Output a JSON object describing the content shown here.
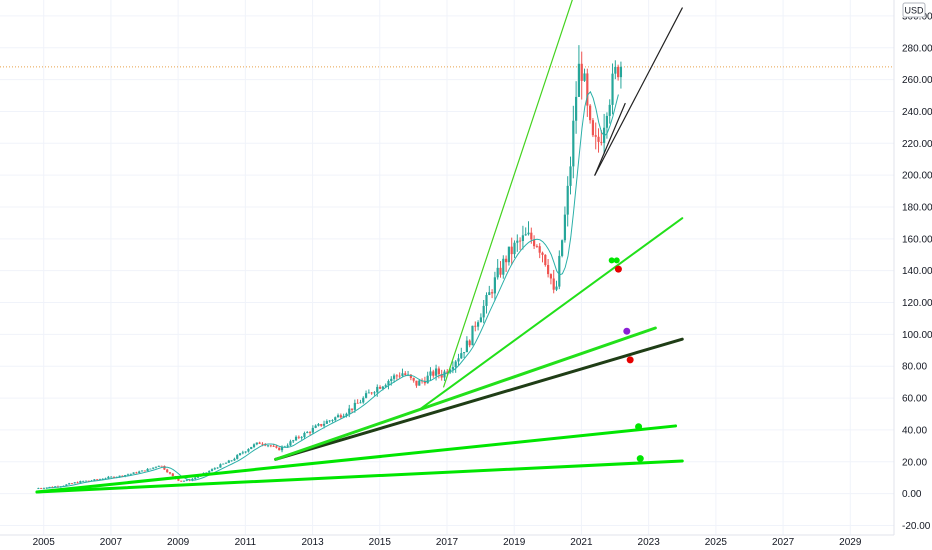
{
  "chart_data": {
    "type": "candlestick",
    "currency": "USD",
    "x_ticks": [
      "2005",
      "2007",
      "2009",
      "2011",
      "2013",
      "2015",
      "2017",
      "2019",
      "2021",
      "2023",
      "2025",
      "2027",
      "2029"
    ],
    "y_ticks": [
      "300.00",
      "280.00",
      "260.00",
      "240.00",
      "220.00",
      "200.00",
      "180.00",
      "160.00",
      "140.00",
      "120.00",
      "100.00",
      "80.00",
      "60.00",
      "40.00",
      "20.00",
      "0.00",
      "-20.00"
    ],
    "y_tick_values": [
      300,
      280,
      260,
      240,
      220,
      200,
      180,
      160,
      140,
      120,
      100,
      80,
      60,
      40,
      20,
      0,
      -20
    ],
    "ylim": [
      -26,
      310
    ],
    "xlim": [
      2003.7,
      2030.3
    ],
    "price_line": 268,
    "price_path": [
      [
        2004.8,
        3.2
      ],
      [
        2005.0,
        3.6
      ],
      [
        2005.3,
        4.2
      ],
      [
        2005.6,
        5.0
      ],
      [
        2005.9,
        6.5
      ],
      [
        2006.2,
        7.8
      ],
      [
        2006.5,
        8.3
      ],
      [
        2006.8,
        9.5
      ],
      [
        2007.0,
        10.2
      ],
      [
        2007.3,
        11.0
      ],
      [
        2007.6,
        12.3
      ],
      [
        2007.9,
        13.8
      ],
      [
        2008.2,
        15.5
      ],
      [
        2008.5,
        18.2
      ],
      [
        2008.7,
        14.2
      ],
      [
        2008.9,
        10.5
      ],
      [
        2009.1,
        7.8
      ],
      [
        2009.4,
        8.6
      ],
      [
        2009.7,
        11.5
      ],
      [
        2010.0,
        14.5
      ],
      [
        2010.3,
        17.8
      ],
      [
        2010.6,
        20.5
      ],
      [
        2010.9,
        25.0
      ],
      [
        2011.2,
        29.5
      ],
      [
        2011.5,
        32.2
      ],
      [
        2011.8,
        30.0
      ],
      [
        2012.0,
        27.5
      ],
      [
        2012.3,
        31.0
      ],
      [
        2012.6,
        35.2
      ],
      [
        2012.9,
        38.5
      ],
      [
        2013.1,
        41.2
      ],
      [
        2013.4,
        44.5
      ],
      [
        2013.7,
        47.5
      ],
      [
        2014.0,
        51.0
      ],
      [
        2014.3,
        55.0
      ],
      [
        2014.6,
        60.5
      ],
      [
        2014.9,
        66.0
      ],
      [
        2015.1,
        68.5
      ],
      [
        2015.4,
        72.5
      ],
      [
        2015.7,
        76.0
      ],
      [
        2015.9,
        73.0
      ],
      [
        2016.1,
        68.5
      ],
      [
        2016.4,
        72.0
      ],
      [
        2016.7,
        76.5
      ],
      [
        2016.9,
        74.5
      ],
      [
        2017.1,
        79.5
      ],
      [
        2017.4,
        87.0
      ],
      [
        2017.7,
        95.5
      ],
      [
        2017.9,
        108.0
      ],
      [
        2018.2,
        120.0
      ],
      [
        2018.5,
        135.0
      ],
      [
        2018.8,
        148.0
      ],
      [
        2019.1,
        156.0
      ],
      [
        2019.4,
        161.0
      ],
      [
        2019.7,
        159.0
      ],
      [
        2019.9,
        151.0
      ],
      [
        2020.1,
        139.0
      ],
      [
        2020.25,
        121.0
      ],
      [
        2020.4,
        148.0
      ],
      [
        2020.6,
        182.0
      ],
      [
        2020.75,
        215.0
      ],
      [
        2020.85,
        245.0
      ],
      [
        2021.0,
        272.0
      ],
      [
        2021.1,
        262.0
      ],
      [
        2021.2,
        241.0
      ],
      [
        2021.35,
        221.0
      ],
      [
        2021.5,
        218.0
      ],
      [
        2021.65,
        228.0
      ],
      [
        2021.8,
        246.0
      ],
      [
        2021.95,
        255.0
      ],
      [
        2022.05,
        263.0
      ],
      [
        2022.15,
        270.0
      ]
    ],
    "trend_lines": [
      {
        "color": "#00e600",
        "width": 3,
        "points": [
          [
            2004.8,
            1
          ],
          [
            2024.0,
            20.5
          ]
        ]
      },
      {
        "color": "#00e600",
        "width": 3,
        "points": [
          [
            2004.8,
            1
          ],
          [
            2023.8,
            42.5
          ]
        ]
      },
      {
        "color": "#1f3d16",
        "width": 3,
        "points": [
          [
            2011.9,
            21.5
          ],
          [
            2024.0,
            97.0
          ]
        ]
      },
      {
        "color": "#22e01a",
        "width": 3,
        "points": [
          [
            2011.9,
            21.5
          ],
          [
            2023.2,
            104.0
          ]
        ]
      },
      {
        "color": "#22e01a",
        "width": 2,
        "points": [
          [
            2016.2,
            53.0
          ],
          [
            2024.0,
            173.0
          ]
        ]
      },
      {
        "color": "#44d31f",
        "width": 1.2,
        "points": [
          [
            2016.9,
            67.0
          ],
          [
            2021.2,
            340.0
          ]
        ]
      },
      {
        "color": "#222222",
        "width": 1.2,
        "points": [
          [
            2021.4,
            200.0
          ],
          [
            2024.0,
            305.0
          ]
        ]
      },
      {
        "color": "#222222",
        "width": 1.2,
        "points": [
          [
            2021.4,
            200.0
          ],
          [
            2022.3,
            245.0
          ]
        ]
      }
    ],
    "markers": [
      {
        "x": 2021.9,
        "y": 146.5,
        "color": "#00e600",
        "r": 3
      },
      {
        "x": 2022.05,
        "y": 146.5,
        "color": "#00e600",
        "r": 3
      },
      {
        "x": 2022.1,
        "y": 141.0,
        "color": "#e60000",
        "r": 3.5
      },
      {
        "x": 2022.35,
        "y": 102.0,
        "color": "#8a1fd6",
        "r": 3.5
      },
      {
        "x": 2022.45,
        "y": 84.0,
        "color": "#e60000",
        "r": 3.5
      },
      {
        "x": 2022.7,
        "y": 42.0,
        "color": "#00e600",
        "r": 3.5
      },
      {
        "x": 2022.75,
        "y": 22.0,
        "color": "#00e600",
        "r": 3.5
      }
    ]
  }
}
